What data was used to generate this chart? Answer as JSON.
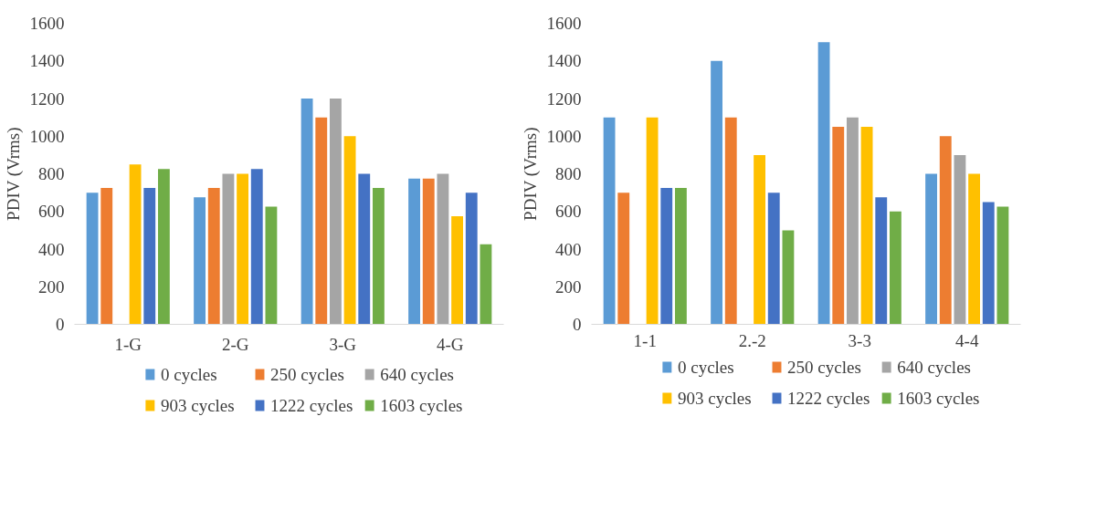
{
  "chart_data": [
    {
      "type": "bar",
      "ylabel": "PDIV (Vrms)",
      "categories": [
        "1-G",
        "2-G",
        "3-G",
        "4-G"
      ],
      "ylim": [
        0,
        1600
      ],
      "yticks": [
        0,
        200,
        400,
        600,
        800,
        1000,
        1200,
        1400,
        1600
      ],
      "grid": false,
      "legend": "bottom",
      "series": [
        {
          "name": "0 cycles",
          "color": "#5b9bd5",
          "values": [
            700,
            675,
            1200,
            775
          ]
        },
        {
          "name": "250 cycles",
          "color": "#ed7d31",
          "values": [
            725,
            725,
            1100,
            775
          ]
        },
        {
          "name": "640 cycles",
          "color": "#a5a5a5",
          "values": [
            null,
            800,
            1200,
            800
          ]
        },
        {
          "name": "903 cycles",
          "color": "#ffc000",
          "values": [
            850,
            800,
            1000,
            575
          ]
        },
        {
          "name": "1222 cycles",
          "color": "#4472c4",
          "values": [
            725,
            825,
            800,
            700
          ]
        },
        {
          "name": "1603 cycles",
          "color": "#70ad47",
          "values": [
            825,
            625,
            725,
            425
          ]
        }
      ]
    },
    {
      "type": "bar",
      "ylabel": "PDIV (Vrms)",
      "categories": [
        "1-1",
        "2.-2",
        "3-3",
        "4-4"
      ],
      "ylim": [
        0,
        1600
      ],
      "yticks": [
        0,
        200,
        400,
        600,
        800,
        1000,
        1200,
        1400,
        1600
      ],
      "grid": false,
      "legend": "bottom",
      "series": [
        {
          "name": "0 cycles",
          "color": "#5b9bd5",
          "values": [
            1100,
            1400,
            1500,
            800
          ]
        },
        {
          "name": "250 cycles",
          "color": "#ed7d31",
          "values": [
            700,
            1100,
            1050,
            1000
          ]
        },
        {
          "name": "640 cycles",
          "color": "#a5a5a5",
          "values": [
            null,
            null,
            1100,
            900
          ]
        },
        {
          "name": "903 cycles",
          "color": "#ffc000",
          "values": [
            1100,
            900,
            1050,
            800
          ]
        },
        {
          "name": "1222 cycles",
          "color": "#4472c4",
          "values": [
            725,
            700,
            675,
            650
          ]
        },
        {
          "name": "1603 cycles",
          "color": "#70ad47",
          "values": [
            725,
            500,
            600,
            625
          ]
        }
      ]
    }
  ]
}
